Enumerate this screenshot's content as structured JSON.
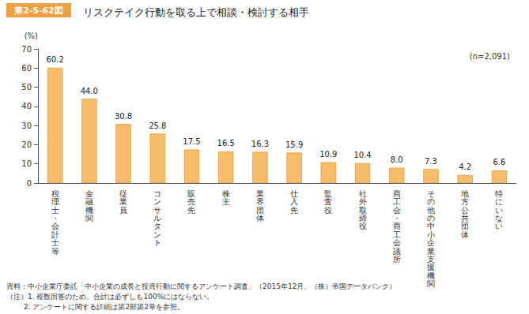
{
  "chart_data": {
    "type": "bar",
    "title": "リスクテイク行動を取る上で相談・検討する相手",
    "ylabel": "(%)",
    "annotations": [
      "第2-5-62図",
      "(n=2,091)",
      "資料：中小企業庁委託「中小企業の成長と投資行動に関するアンケート調査」（2015年12月、（株）帝国データバンク）",
      "（注）1. 複数回答のため、合計は必ずしも100%にはならない。",
      "2. アンケートに関する詳細は第2部第2章を参照。"
    ],
    "categories": [
      "税理士・会計士等",
      "金融機関",
      "従業員",
      "コンサルタント",
      "販売先",
      "株主",
      "業界団体",
      "仕入先",
      "監査役",
      "社外取締役",
      "商工会・商工会議所",
      "その他の中小企業支援機関",
      "地方公共団体",
      "特にいない"
    ],
    "values": [
      60.2,
      44.0,
      30.8,
      25.8,
      17.5,
      16.5,
      16.3,
      15.9,
      10.9,
      10.4,
      8.0,
      7.3,
      4.2,
      6.6
    ],
    "value_labels": [
      "60.2",
      "44.0",
      "30.8",
      "25.8",
      "17.5",
      "16.5",
      "16.3",
      "15.9",
      "10.9",
      "10.4",
      "8.0",
      "7.3",
      "4.2",
      "6.6"
    ],
    "color": "#f7bd6a",
    "ylim": [
      0,
      70
    ],
    "yticks": [
      0,
      10,
      20,
      30,
      40,
      50,
      60,
      70
    ],
    "grid": false,
    "data_labels": true
  }
}
